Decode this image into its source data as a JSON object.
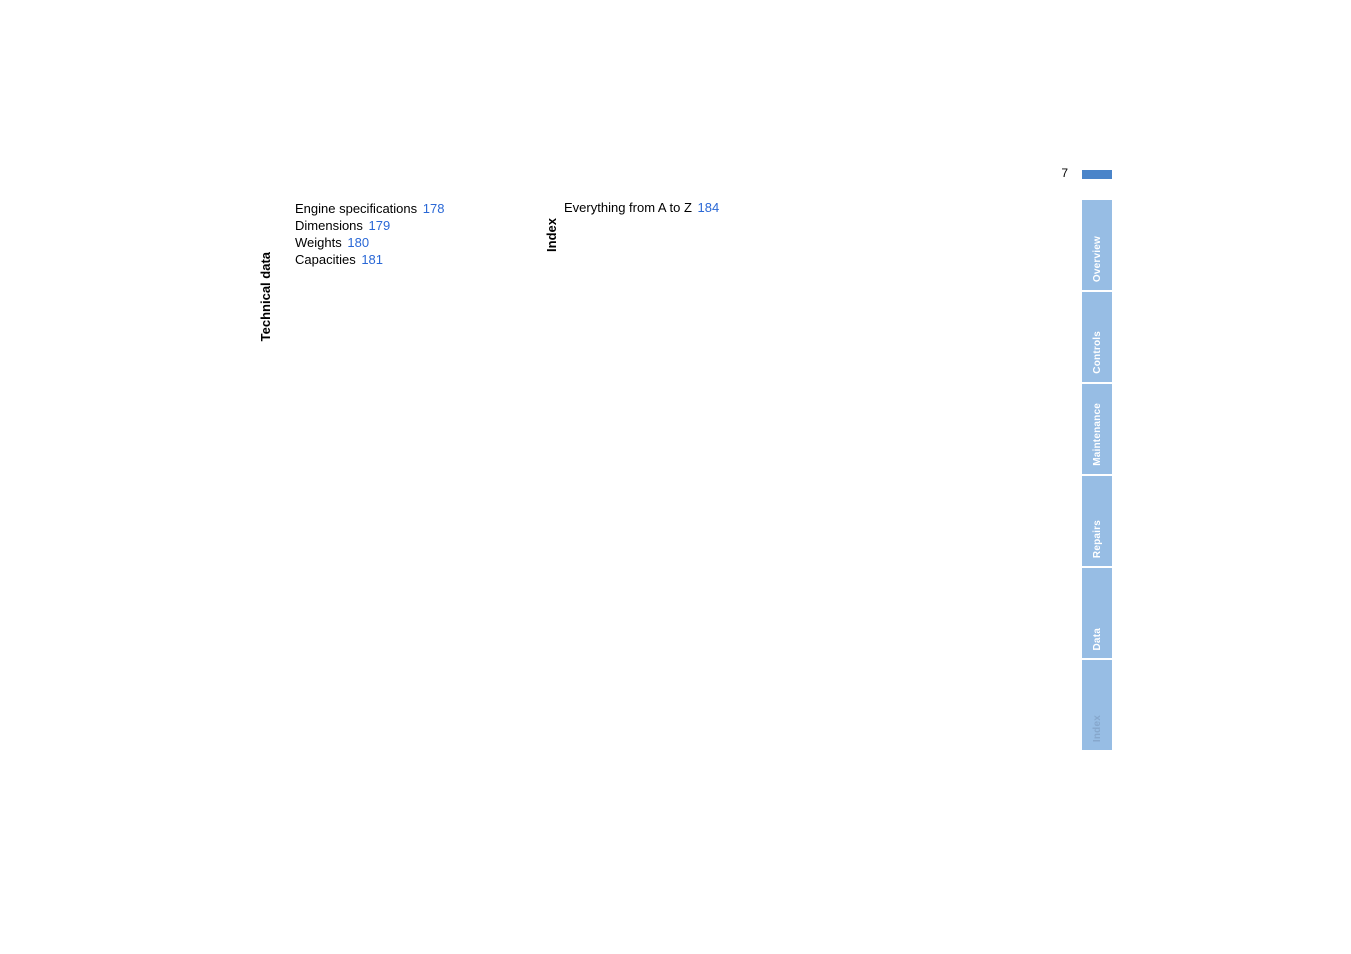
{
  "page_number": "7",
  "colors": {
    "link_blue": "#2a68d6",
    "tab_bg": "#97bde4",
    "tab_active_text": "#ffffff",
    "tab_inactive_text": "#86a7cc",
    "top_bar_blue": "#4a84c9",
    "text_black": "#000000",
    "background": "#ffffff"
  },
  "sections": {
    "technical_data": {
      "heading": "Technical data",
      "entries": [
        {
          "label": "Engine specifications",
          "page": "178"
        },
        {
          "label": "Dimensions",
          "page": "179"
        },
        {
          "label": "Weights",
          "page": "180"
        },
        {
          "label": "Capacities",
          "page": "181"
        }
      ]
    },
    "index": {
      "heading": "Index",
      "entries": [
        {
          "label": "Everything from A to Z",
          "page": "184"
        }
      ]
    }
  },
  "side_tabs": [
    {
      "label": "Overview",
      "active": true
    },
    {
      "label": "Controls",
      "active": true
    },
    {
      "label": "Maintenance",
      "active": true
    },
    {
      "label": "Repairs",
      "active": true
    },
    {
      "label": "Data",
      "active": true
    },
    {
      "label": "Index",
      "active": true
    }
  ]
}
